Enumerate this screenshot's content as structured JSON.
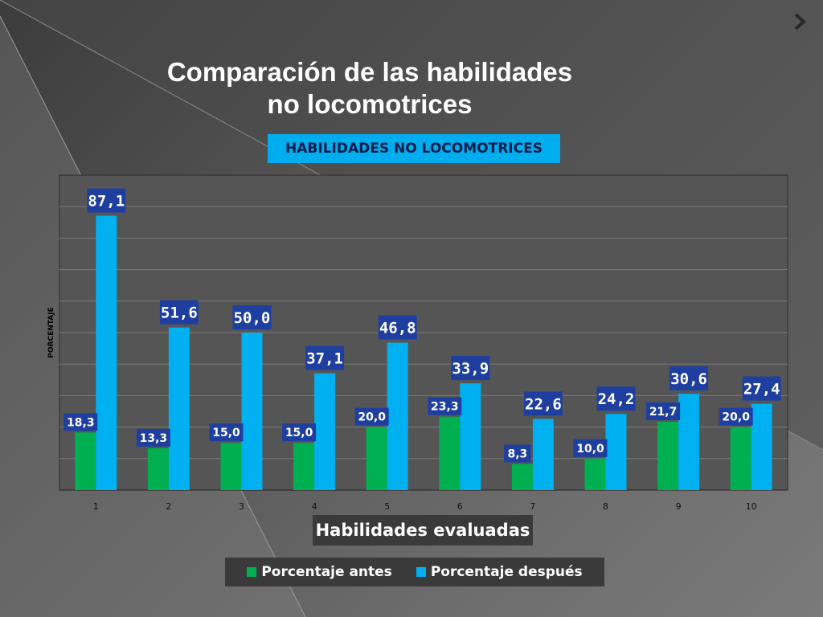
{
  "slide": {
    "title_line1": "Comparación de las habilidades",
    "title_line2": "no locomotrices"
  },
  "colors": {
    "antes": "#00b050",
    "despues": "#00b0f0",
    "label_bg": "#1f3fa0"
  },
  "chart_data": {
    "type": "bar",
    "title": "HABILIDADES NO LOCOMOTRICES",
    "xlabel": "Habilidades evaluadas",
    "ylabel": "PORCENTAJE",
    "ylim": [
      0,
      100
    ],
    "grid": true,
    "legend_position": "bottom",
    "categories": [
      "1",
      "2",
      "3",
      "4",
      "5",
      "6",
      "7",
      "8",
      "9",
      "10"
    ],
    "series": [
      {
        "name": "Porcentaje antes",
        "values": [
          18.3,
          13.3,
          15.0,
          15.0,
          20.0,
          23.3,
          8.3,
          10.0,
          21.7,
          20.0
        ],
        "labels": [
          "18,3",
          "13,3",
          "15,0",
          "15,0",
          "20,0",
          "23,3",
          "8,3",
          "10,0",
          "21,7",
          "20,0"
        ]
      },
      {
        "name": "Porcentaje después",
        "values": [
          87.1,
          51.6,
          50.0,
          37.1,
          46.8,
          33.9,
          22.6,
          24.2,
          30.6,
          27.4
        ],
        "labels": [
          "87,1",
          "51,6",
          "50,0",
          "37,1",
          "46,8",
          "33,9",
          "22,6",
          "24,2",
          "30,6",
          "27,4"
        ]
      }
    ]
  }
}
